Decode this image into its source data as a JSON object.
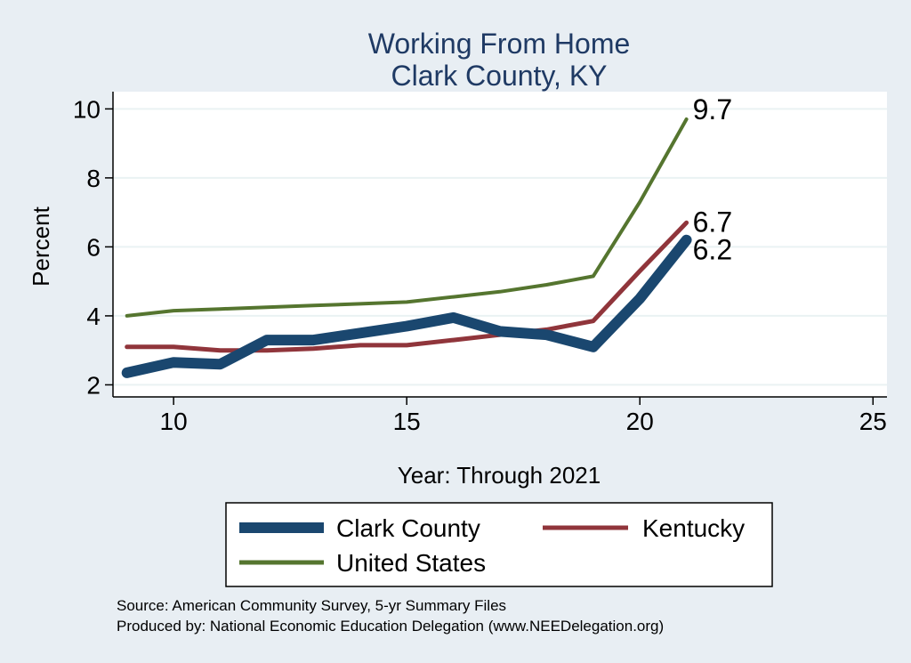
{
  "chart_data": {
    "type": "line",
    "title": [
      "Working From Home",
      "Clark County, KY"
    ],
    "xlabel": "Year: Through 2021",
    "ylabel": "Percent",
    "xlim": [
      8.7,
      25.3
    ],
    "ylim": [
      1.65,
      10.5
    ],
    "xticks": [
      10,
      15,
      20,
      25
    ],
    "yticks": [
      2,
      4,
      6,
      8,
      10
    ],
    "grid": true,
    "legend_position": "bottom",
    "series": [
      {
        "name": "Clark County",
        "color": "#1a476f",
        "x": [
          9,
          10,
          11,
          12,
          13,
          14,
          15,
          16,
          17,
          18,
          19,
          20,
          21
        ],
        "values": [
          2.35,
          2.65,
          2.6,
          3.3,
          3.3,
          3.5,
          3.7,
          3.95,
          3.55,
          3.45,
          3.1,
          4.5,
          6.2
        ],
        "end_label": "6.2"
      },
      {
        "name": "Kentucky",
        "color": "#90353b",
        "x": [
          9,
          10,
          11,
          12,
          13,
          14,
          15,
          16,
          17,
          18,
          19,
          20,
          21
        ],
        "values": [
          3.1,
          3.1,
          3.0,
          3.0,
          3.05,
          3.15,
          3.15,
          3.3,
          3.45,
          3.6,
          3.85,
          5.3,
          6.7
        ],
        "end_label": "6.7"
      },
      {
        "name": "United States",
        "color": "#55752f",
        "x": [
          9,
          10,
          11,
          12,
          13,
          14,
          15,
          16,
          17,
          18,
          19,
          20,
          21
        ],
        "values": [
          4.0,
          4.15,
          4.2,
          4.25,
          4.3,
          4.35,
          4.4,
          4.55,
          4.7,
          4.9,
          5.15,
          7.3,
          9.7
        ],
        "end_label": "9.7"
      }
    ],
    "notes": [
      "Source: American Community Survey, 5-yr Summary Files",
      "Produced by: National Economic Education Delegation (www.NEEDelegation.org)"
    ]
  }
}
